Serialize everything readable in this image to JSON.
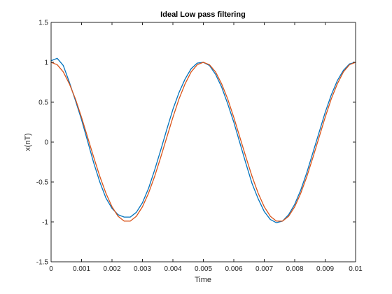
{
  "chart_data": {
    "type": "line",
    "title": "Ideal Low pass filtering",
    "xlabel": "Time",
    "ylabel": "x(nT)",
    "xlim": [
      0,
      0.01
    ],
    "ylim": [
      -1.5,
      1.5
    ],
    "grid": false,
    "x_ticks": [
      0,
      0.001,
      0.002,
      0.003,
      0.004,
      0.005,
      0.006,
      0.007,
      0.008,
      0.009,
      0.01
    ],
    "x_tick_labels": [
      "0",
      "0.001",
      "0.002",
      "0.003",
      "0.004",
      "0.005",
      "0.006",
      "0.007",
      "0.008",
      "0.009",
      "0.01"
    ],
    "y_ticks": [
      -1.5,
      -1,
      -0.5,
      0,
      0.5,
      1,
      1.5
    ],
    "y_tick_labels": [
      "-1.5",
      "-1",
      "-0.5",
      "0",
      "0.5",
      "1",
      "1.5"
    ],
    "series": [
      {
        "color": "#0072BD",
        "x": [
          0,
          0.0002,
          0.0004,
          0.0006,
          0.0008,
          0.001,
          0.0012,
          0.0014,
          0.0016,
          0.0018,
          0.002,
          0.0022,
          0.0024,
          0.0026,
          0.0028,
          0.003,
          0.0032,
          0.0034,
          0.0036,
          0.0038,
          0.004,
          0.0042,
          0.0044,
          0.0046,
          0.0048,
          0.005,
          0.0052,
          0.0054,
          0.0056,
          0.0058,
          0.006,
          0.0062,
          0.0064,
          0.0066,
          0.0068,
          0.007,
          0.0072,
          0.0074,
          0.0076,
          0.0078,
          0.008,
          0.0082,
          0.0084,
          0.0086,
          0.0088,
          0.009,
          0.0092,
          0.0094,
          0.0096,
          0.0098,
          0.01
        ],
        "y": [
          1.02,
          1.05,
          0.96,
          0.75,
          0.52,
          0.28,
          0.01,
          -0.26,
          -0.5,
          -0.7,
          -0.83,
          -0.91,
          -0.94,
          -0.94,
          -0.88,
          -0.76,
          -0.58,
          -0.35,
          -0.1,
          0.16,
          0.41,
          0.62,
          0.79,
          0.92,
          0.99,
          1.0,
          0.96,
          0.85,
          0.69,
          0.48,
          0.25,
          -0.01,
          -0.27,
          -0.52,
          -0.71,
          -0.87,
          -0.97,
          -1.01,
          -0.99,
          -0.91,
          -0.78,
          -0.6,
          -0.38,
          -0.13,
          0.12,
          0.37,
          0.59,
          0.77,
          0.9,
          0.98,
          1.0
        ]
      },
      {
        "color": "#D95319",
        "x": [
          0,
          0.0002,
          0.0004,
          0.0006,
          0.0008,
          0.001,
          0.0012,
          0.0014,
          0.0016,
          0.0018,
          0.002,
          0.0022,
          0.0024,
          0.0026,
          0.0028,
          0.003,
          0.0032,
          0.0034,
          0.0036,
          0.0038,
          0.004,
          0.0042,
          0.0044,
          0.0046,
          0.0048,
          0.005,
          0.0052,
          0.0054,
          0.0056,
          0.0058,
          0.006,
          0.0062,
          0.0064,
          0.0066,
          0.0068,
          0.007,
          0.0072,
          0.0074,
          0.0076,
          0.0078,
          0.008,
          0.0082,
          0.0084,
          0.0086,
          0.0088,
          0.009,
          0.0092,
          0.0094,
          0.0096,
          0.0098,
          0.01
        ],
        "y": [
          1.0,
          0.97,
          0.88,
          0.73,
          0.54,
          0.31,
          0.06,
          -0.19,
          -0.43,
          -0.64,
          -0.81,
          -0.93,
          -0.99,
          -0.99,
          -0.93,
          -0.81,
          -0.64,
          -0.43,
          -0.19,
          0.06,
          0.31,
          0.54,
          0.73,
          0.88,
          0.97,
          1.0,
          0.97,
          0.88,
          0.73,
          0.54,
          0.31,
          0.06,
          -0.19,
          -0.43,
          -0.64,
          -0.81,
          -0.93,
          -0.99,
          -0.99,
          -0.93,
          -0.81,
          -0.64,
          -0.43,
          -0.19,
          0.06,
          0.31,
          0.54,
          0.73,
          0.88,
          0.97,
          1.0
        ]
      }
    ]
  }
}
